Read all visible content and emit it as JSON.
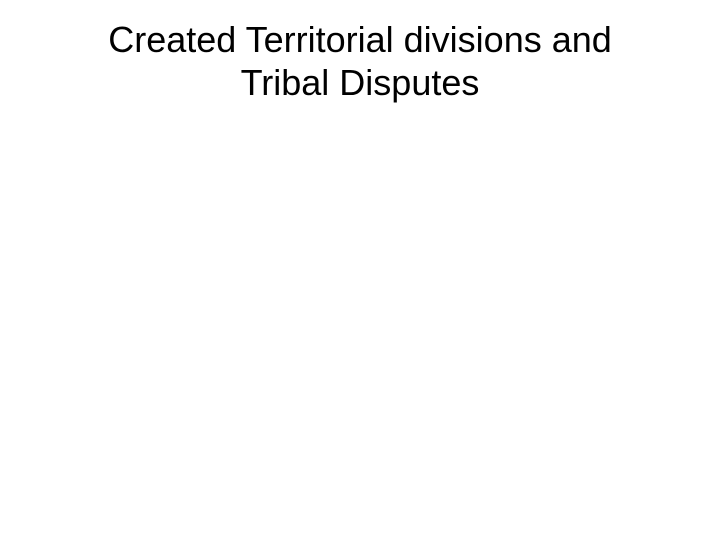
{
  "slide": {
    "title": "Created Territorial divisions and Tribal Disputes",
    "title_fontsize": 36,
    "title_color": "#000000",
    "background_color": "#ffffff",
    "font_family": "Arial, Helvetica, sans-serif"
  }
}
